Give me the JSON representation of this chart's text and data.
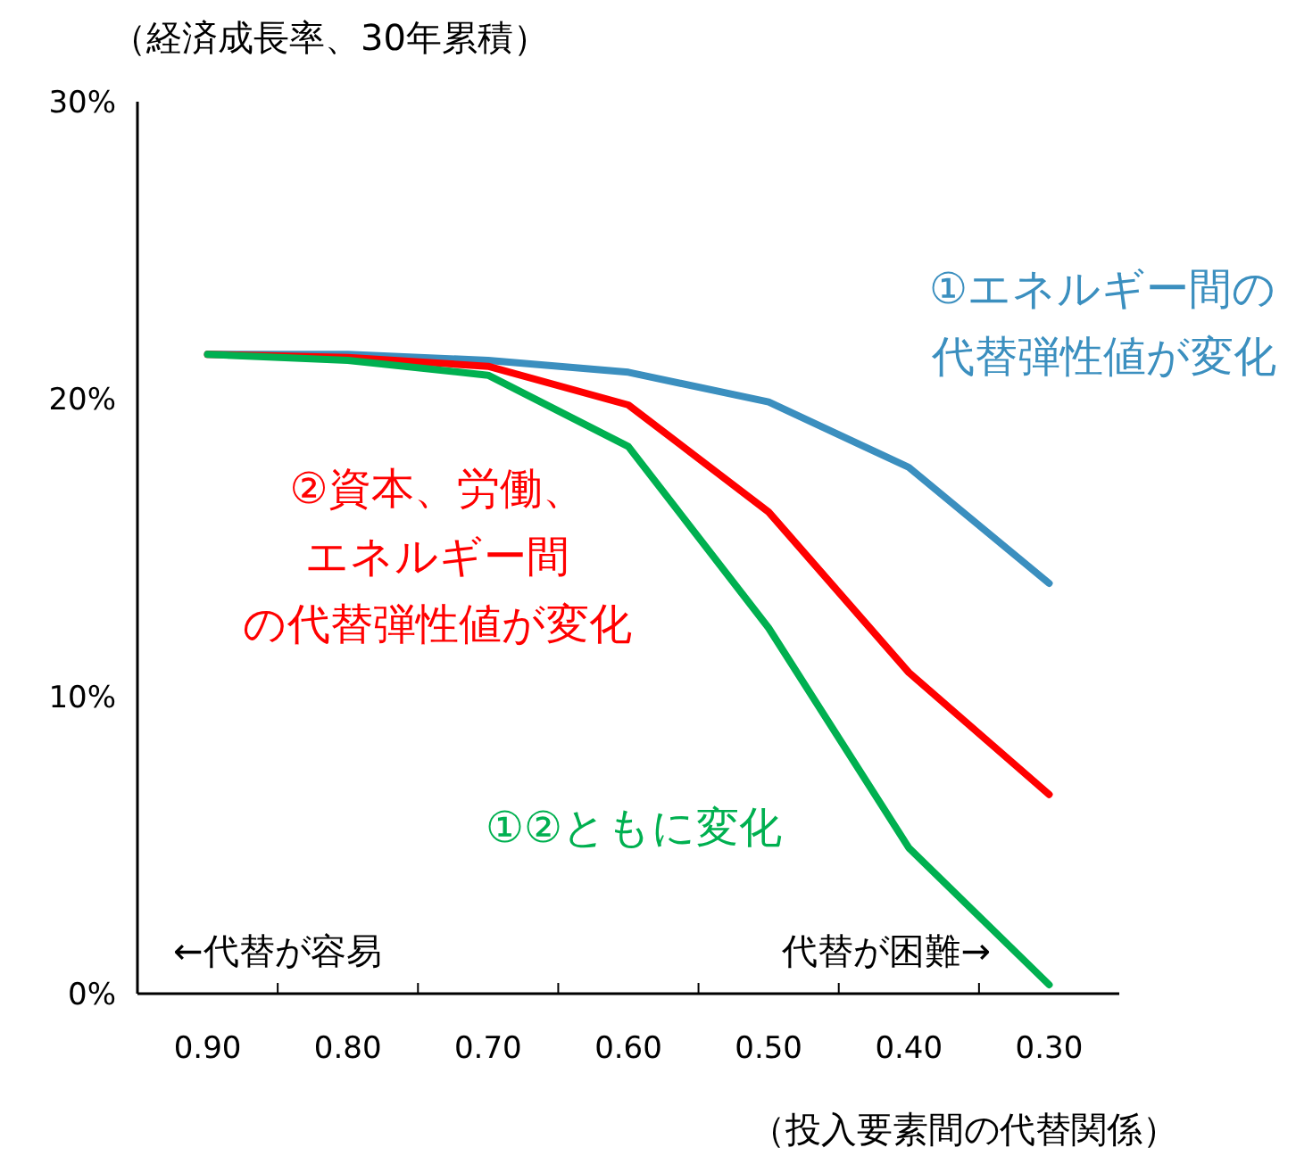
{
  "chart_data": {
    "type": "line",
    "ylabel": "（経済成長率、30年累積）",
    "xlabel": "（投入要素間の代替関係）",
    "categories": [
      "0.90",
      "0.80",
      "0.70",
      "0.60",
      "0.50",
      "0.40",
      "0.30"
    ],
    "ylim": [
      0,
      30
    ],
    "yticks": [
      {
        "value": 0,
        "label": "0%"
      },
      {
        "value": 10,
        "label": "10%"
      },
      {
        "value": 20,
        "label": "20%"
      },
      {
        "value": 30,
        "label": "30%"
      }
    ],
    "grid": false,
    "marker": "none",
    "line_style": "solid",
    "series": [
      {
        "name": "①エネルギー間の代替弾性値が変化",
        "color": "#3b8fbf",
        "values": [
          21.5,
          21.5,
          21.3,
          20.9,
          19.9,
          17.7,
          13.8
        ]
      },
      {
        "name": "②資本、労働、エネルギー間の代替弾性値が変化",
        "color": "#ff0000",
        "values": [
          21.5,
          21.4,
          21.1,
          19.8,
          16.2,
          10.8,
          6.7
        ]
      },
      {
        "name": "①②ともに変化",
        "color": "#00b050",
        "values": [
          21.5,
          21.3,
          20.8,
          18.4,
          12.3,
          4.9,
          0.3
        ]
      }
    ],
    "annotations": [
      "←代替が容易",
      "代替が困難→"
    ]
  }
}
